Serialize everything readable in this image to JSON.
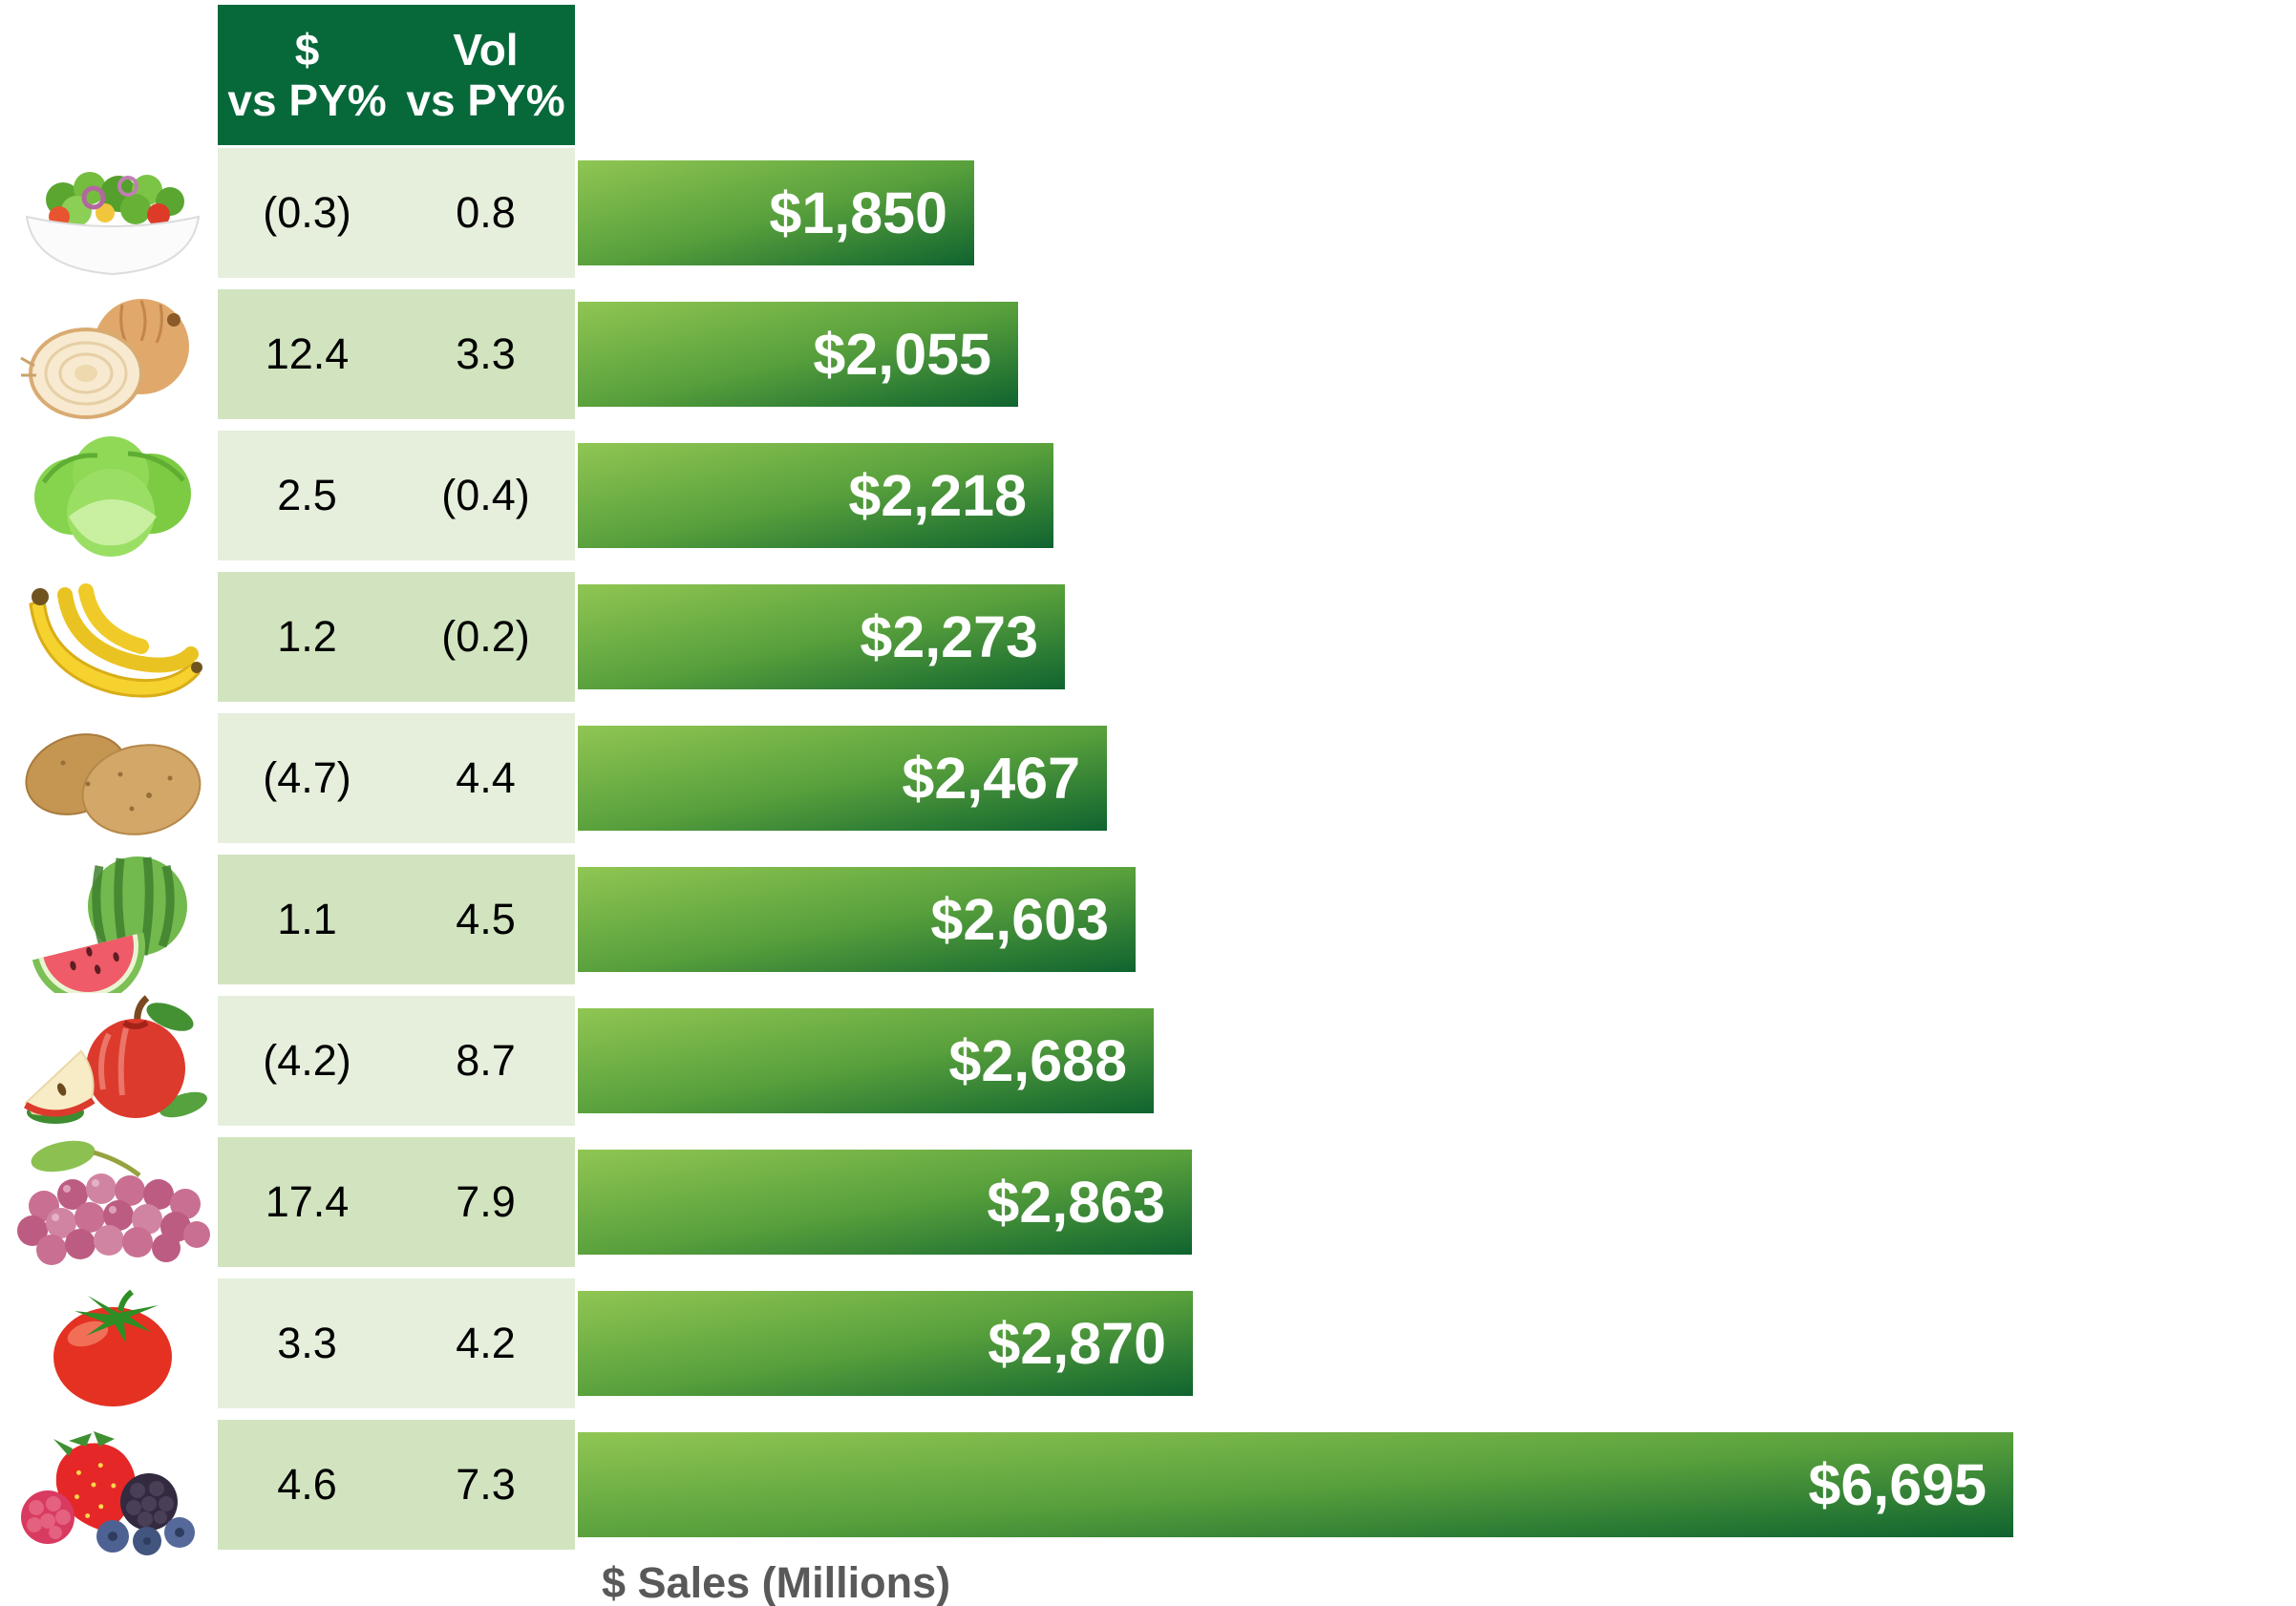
{
  "chart_data": {
    "type": "bar",
    "orientation": "horizontal",
    "title": "",
    "xlabel": "$ Sales (Millions)",
    "ylabel": "",
    "gridlines": false,
    "legend": "none",
    "axis_ticks_visible": false,
    "xlim": [
      0,
      7000
    ],
    "categories": [
      "salad",
      "onions",
      "lettuce",
      "bananas",
      "potatoes",
      "watermelon",
      "apples",
      "grapes",
      "tomatoes",
      "berries"
    ],
    "values": [
      1850,
      2055,
      2218,
      2273,
      2467,
      2603,
      2688,
      2863,
      2870,
      6695
    ],
    "bar_labels": [
      "$1,850",
      "$2,055",
      "$2,218",
      "$2,273",
      "$2,467",
      "$2,603",
      "$2,688",
      "$2,863",
      "$2,870",
      "$6,695"
    ],
    "table_columns": [
      "$ vs PY%",
      "Vol vs PY%"
    ],
    "series": [
      {
        "name": "$ vs PY%",
        "values": [
          -0.3,
          12.4,
          2.5,
          1.2,
          -4.7,
          1.1,
          -4.2,
          17.4,
          3.3,
          4.6
        ],
        "display": [
          "(0.3)",
          "12.4",
          "2.5",
          "1.2",
          "(4.7)",
          "1.1",
          "(4.2)",
          "17.4",
          "3.3",
          "4.6"
        ]
      },
      {
        "name": "Vol vs PY%",
        "values": [
          0.8,
          3.3,
          -0.4,
          -0.2,
          4.4,
          4.5,
          8.7,
          7.9,
          4.2,
          7.3
        ],
        "display": [
          "0.8",
          "3.3",
          "(0.4)",
          "(0.2)",
          "4.4",
          "4.5",
          "8.7",
          "7.9",
          "4.2",
          "7.3"
        ]
      }
    ]
  },
  "header": {
    "dollar_line1": "$",
    "dollar_line2": "vs PY%",
    "vol_line1": "Vol",
    "vol_line2": "vs PY%"
  },
  "rows": [
    {
      "icon": "salad",
      "dollar_vs_py": "(0.3)",
      "vol_vs_py": "0.8",
      "sales_label": "$1,850",
      "sales_value": 1850
    },
    {
      "icon": "onion",
      "dollar_vs_py": "12.4",
      "vol_vs_py": "3.3",
      "sales_label": "$2,055",
      "sales_value": 2055
    },
    {
      "icon": "lettuce",
      "dollar_vs_py": "2.5",
      "vol_vs_py": "(0.4)",
      "sales_label": "$2,218",
      "sales_value": 2218
    },
    {
      "icon": "bananas",
      "dollar_vs_py": "1.2",
      "vol_vs_py": "(0.2)",
      "sales_label": "$2,273",
      "sales_value": 2273
    },
    {
      "icon": "potatoes",
      "dollar_vs_py": "(4.7)",
      "vol_vs_py": "4.4",
      "sales_label": "$2,467",
      "sales_value": 2467
    },
    {
      "icon": "watermelon",
      "dollar_vs_py": "1.1",
      "vol_vs_py": "4.5",
      "sales_label": "$2,603",
      "sales_value": 2603
    },
    {
      "icon": "apple",
      "dollar_vs_py": "(4.2)",
      "vol_vs_py": "8.7",
      "sales_label": "$2,688",
      "sales_value": 2688
    },
    {
      "icon": "grapes",
      "dollar_vs_py": "17.4",
      "vol_vs_py": "7.9",
      "sales_label": "$2,863",
      "sales_value": 2863
    },
    {
      "icon": "tomato",
      "dollar_vs_py": "3.3",
      "vol_vs_py": "4.2",
      "sales_label": "$2,870",
      "sales_value": 2870
    },
    {
      "icon": "berries",
      "dollar_vs_py": "4.6",
      "vol_vs_py": "7.3",
      "sales_label": "$6,695",
      "sales_value": 6695
    }
  ],
  "axis": {
    "label": "$ Sales (Millions)"
  },
  "colors": {
    "header_bg": "#07693a",
    "header_text": "#ffffff",
    "row_light": "#e5efdc",
    "row_dark": "#d1e4bf",
    "table_text": "#000000",
    "bar_light": "#90c653",
    "bar_mid": "#58a03c",
    "bar_dark": "#0f632f",
    "bar_text": "#ffffff",
    "axis_text": "#595959",
    "background": "#ffffff"
  }
}
